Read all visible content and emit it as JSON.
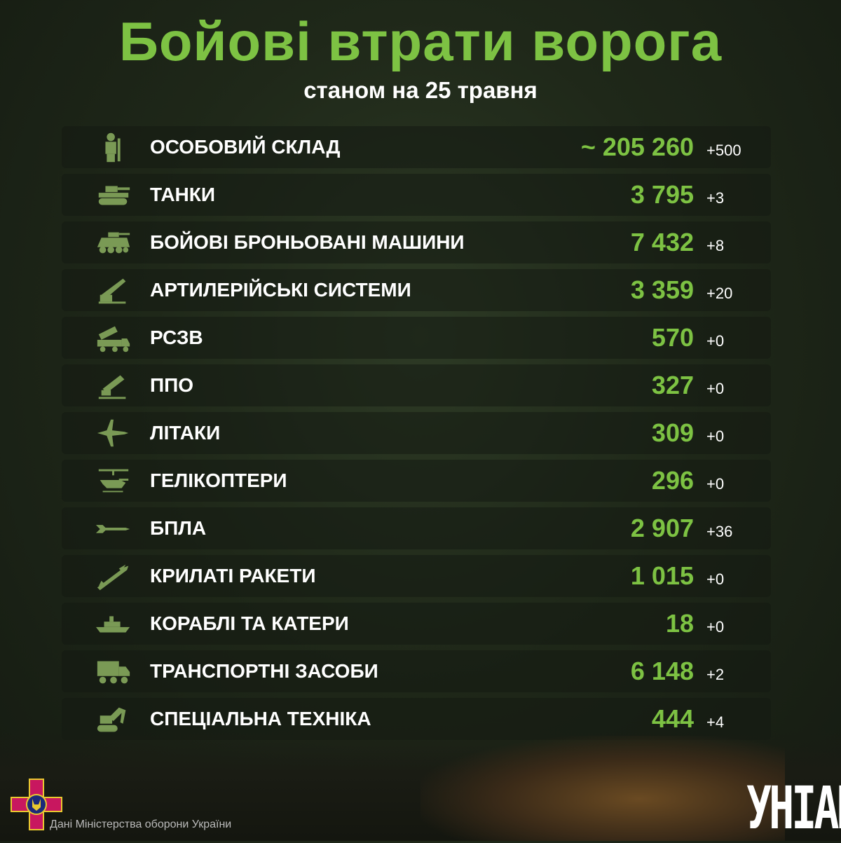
{
  "header": {
    "title": "Бойові втрати ворога",
    "subtitle": "станом на 25 травня"
  },
  "rows": [
    {
      "icon": "soldier-icon",
      "label": "ОСОБОВИЙ СКЛАД",
      "value": "~ 205 260",
      "delta": "+500"
    },
    {
      "icon": "tank-icon",
      "label": "ТАНКИ",
      "value": "3 795",
      "delta": "+3"
    },
    {
      "icon": "apc-icon",
      "label": "БОЙОВІ БРОНЬОВАНІ МАШИНИ",
      "value": "7 432",
      "delta": "+8"
    },
    {
      "icon": "artillery-icon",
      "label": "АРТИЛЕРІЙСЬКІ СИСТЕМИ",
      "value": "3 359",
      "delta": "+20"
    },
    {
      "icon": "mlrs-icon",
      "label": "РСЗВ",
      "value": "570",
      "delta": "+0"
    },
    {
      "icon": "air-defense-icon",
      "label": "ППО",
      "value": "327",
      "delta": "+0"
    },
    {
      "icon": "jet-icon",
      "label": "ЛІТАКИ",
      "value": "309",
      "delta": "+0"
    },
    {
      "icon": "helicopter-icon",
      "label": "ГЕЛІКОПТЕРИ",
      "value": "296",
      "delta": "+0"
    },
    {
      "icon": "drone-icon",
      "label": "БПЛА",
      "value": "2 907",
      "delta": "+36"
    },
    {
      "icon": "missile-icon",
      "label": "КРИЛАТІ РАКЕТИ",
      "value": "1 015",
      "delta": "+0"
    },
    {
      "icon": "ship-icon",
      "label": "КОРАБЛІ ТА КАТЕРИ",
      "value": "18",
      "delta": "+0"
    },
    {
      "icon": "truck-icon",
      "label": "ТРАНСПОРТНІ ЗАСОБИ",
      "value": "6 148",
      "delta": "+2"
    },
    {
      "icon": "excavator-icon",
      "label": "СПЕЦІАЛЬНА ТЕХНІКА",
      "value": "444",
      "delta": "+4"
    }
  ],
  "footer": {
    "source": "Дані Міністерства оборони України",
    "logo": "УНІАН"
  },
  "colors": {
    "accent": "#7dc243",
    "icon": "#7a9a55",
    "emblem": "#c8175f"
  }
}
